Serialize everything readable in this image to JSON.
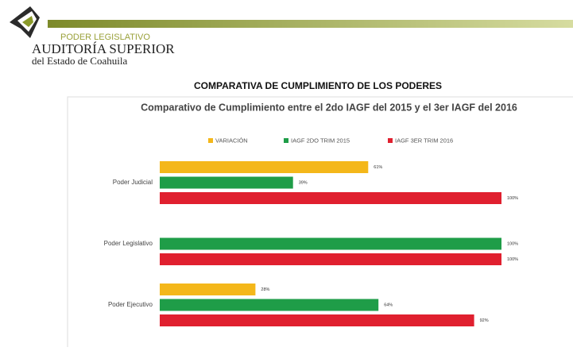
{
  "header": {
    "org_top": "PODER LEGISLATIVO",
    "org_name": "AUDITORÍA SUPERIOR",
    "org_sub": "del Estado de Coahuila",
    "heading": "COMPARATIVA DE CUMPLIMIENTO DE LOS PODERES"
  },
  "chart_data": {
    "type": "bar",
    "orientation": "horizontal",
    "title": "Comparativo de Cumplimiento entre el 2do IAGF del 2015 y el 3er IAGF del 2016",
    "categories": [
      "Poder Judicial",
      "Poder Legislativo",
      "Poder Ejecutivo"
    ],
    "series": [
      {
        "name": "VARIACIÓN",
        "color": "#f4b71a",
        "values": [
          61,
          null,
          28
        ],
        "value_labels": [
          "61%",
          null,
          "28%"
        ]
      },
      {
        "name": "IAGF 2DO TRIM 2015",
        "color": "#1f9d48",
        "values": [
          39,
          100,
          64
        ],
        "value_labels": [
          "39%",
          "100%",
          "64%"
        ]
      },
      {
        "name": "IAGF 3ER TRIM 2016",
        "color": "#e0202f",
        "values": [
          100,
          100,
          92
        ],
        "value_labels": [
          "100%",
          "100%",
          "92%"
        ]
      }
    ],
    "xlim": [
      0,
      100
    ],
    "legend": "top"
  }
}
